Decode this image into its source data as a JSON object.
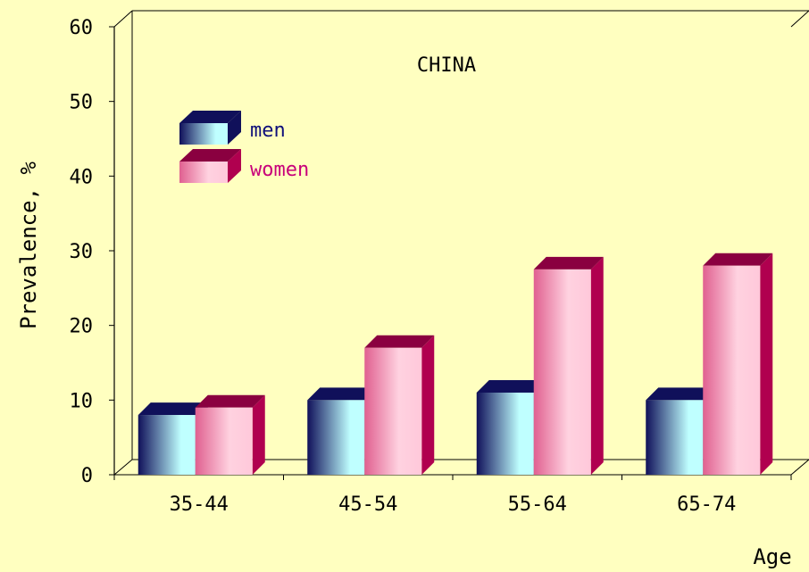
{
  "chart_data": {
    "type": "bar",
    "title": "CHINA",
    "xlabel": "Age",
    "ylabel": "Prevalence, %",
    "categories": [
      "35-44",
      "45-54",
      "55-64",
      "65-74"
    ],
    "series": [
      {
        "name": "men",
        "values": [
          8,
          10,
          11,
          10
        ]
      },
      {
        "name": "women",
        "values": [
          9,
          17,
          27.5,
          28
        ]
      }
    ],
    "ylim": [
      0,
      60
    ],
    "yticks": [
      0,
      10,
      20,
      30,
      40,
      50,
      60
    ],
    "grid": false,
    "legend_position": "top-left",
    "style": "3d"
  },
  "colors": {
    "background": "#FFFFC0",
    "men_light": "#BFFFFF",
    "men_dark": "#10105A",
    "women_light": "#FFD2E0",
    "women_dark": "#B0004F",
    "men_label": "#10107A",
    "women_label": "#C8007A"
  }
}
